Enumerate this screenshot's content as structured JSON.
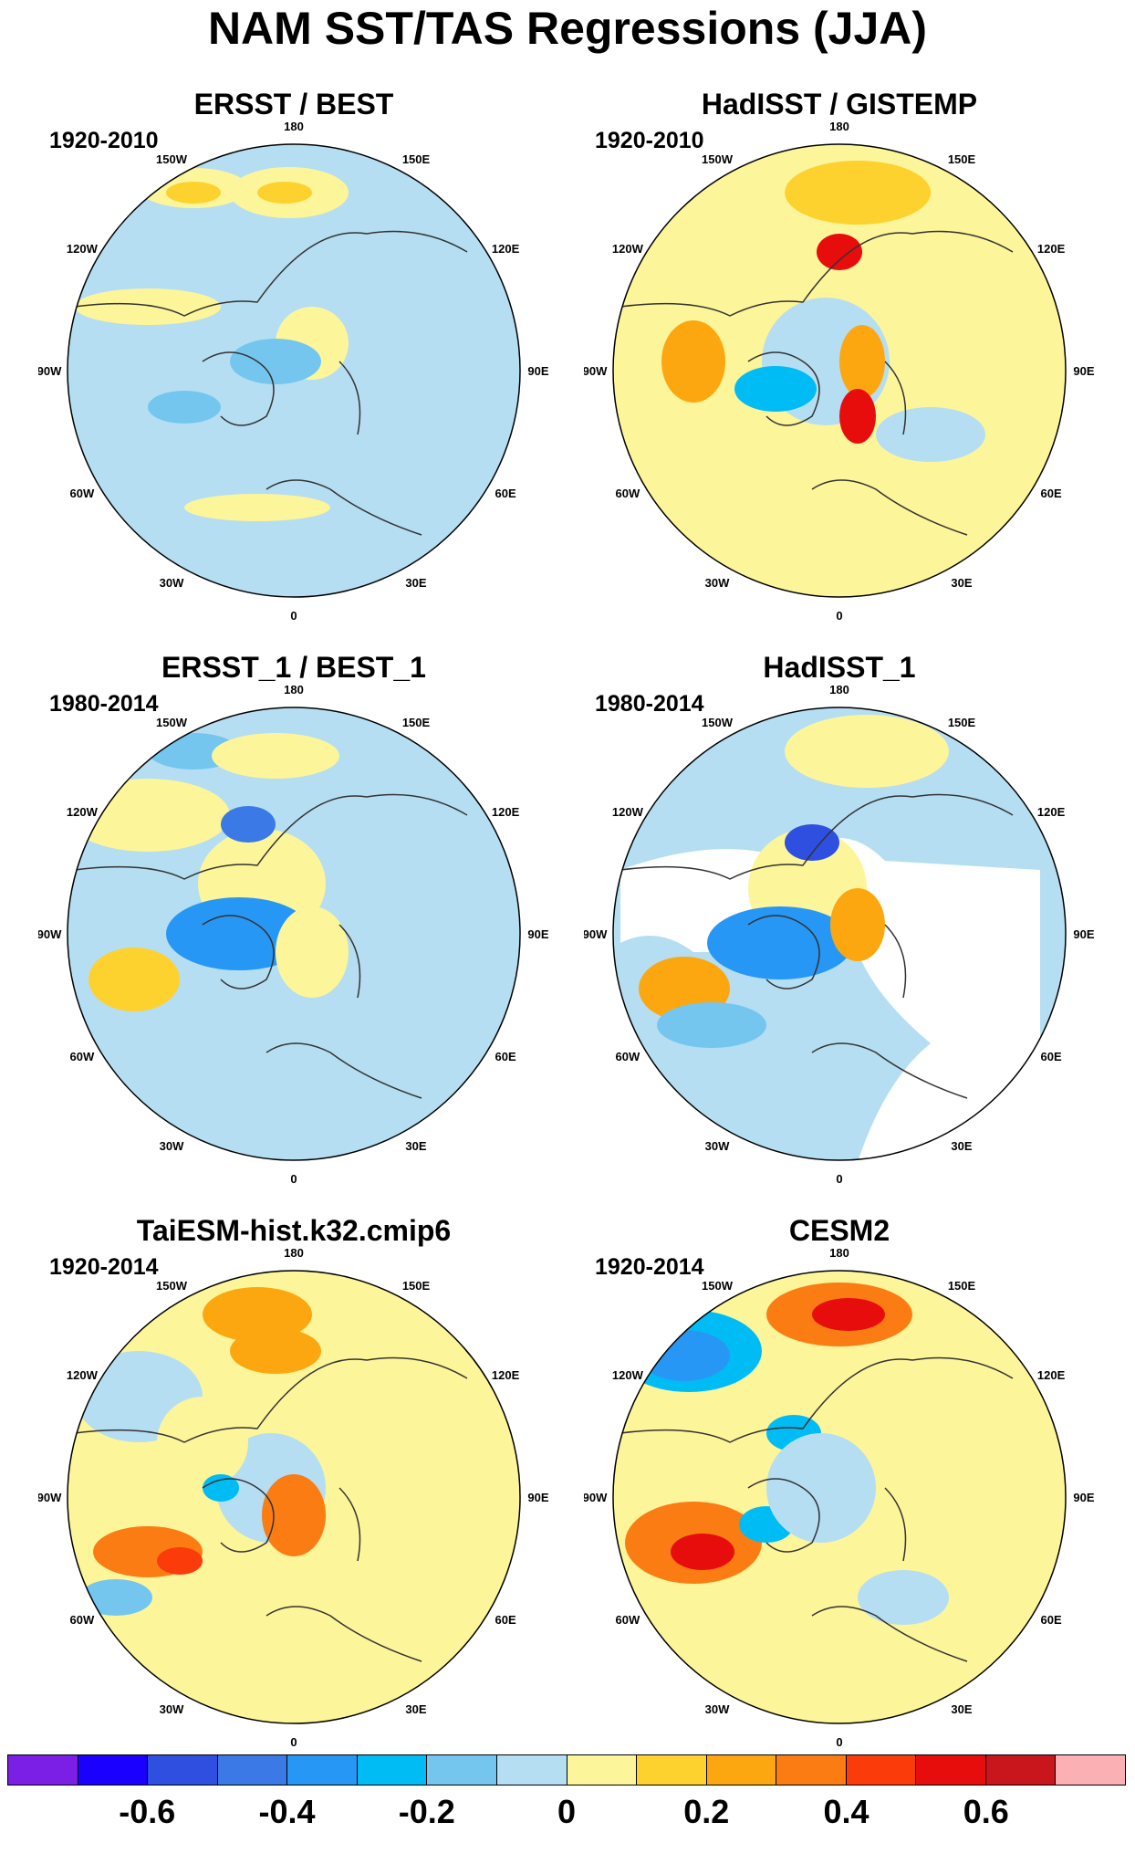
{
  "figure_title": "NAM SST/TAS Regressions (JJA)",
  "longitude_labels": [
    "180",
    "150E",
    "120E",
    "90E",
    "60E",
    "30E",
    "0",
    "30W",
    "60W",
    "90W",
    "120W",
    "150W"
  ],
  "panels": [
    {
      "title": "ERSST / BEST",
      "period": "1920-2010"
    },
    {
      "title": "HadISST / GISTEMP",
      "period": "1920-2010"
    },
    {
      "title": "ERSST_1 / BEST_1",
      "period": "1980-2014"
    },
    {
      "title": "HadISST_1",
      "period": "1980-2014"
    },
    {
      "title": "TaiESM-hist.k32.cmip6",
      "period": "1920-2014"
    },
    {
      "title": "CESM2",
      "period": "1920-2014"
    }
  ],
  "colorbar": {
    "colors": [
      "#7b1fe6",
      "#1a00ff",
      "#2e4fe0",
      "#3b79e6",
      "#2797f5",
      "#00bcf5",
      "#74c6ef",
      "#b5def2",
      "#fdf59a",
      "#fdd22f",
      "#fca70f",
      "#fb7c13",
      "#fb3b0a",
      "#e80d0d",
      "#c9161c",
      "#fbb0b3"
    ],
    "labels": [
      "-0.6",
      "-0.4",
      "-0.2",
      "0",
      "0.2",
      "0.4",
      "0.6"
    ]
  }
}
